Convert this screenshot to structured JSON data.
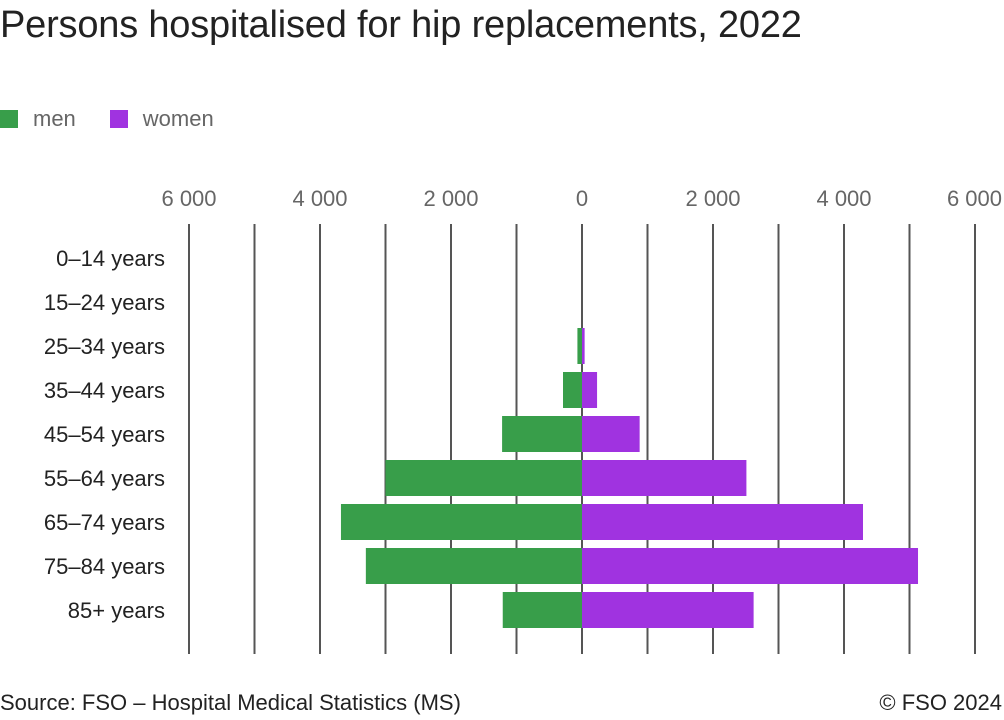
{
  "chart_data": {
    "type": "bar",
    "orientation": "horizontal-pyramid",
    "title": "Persons hospitalised for hip replacements, 2022",
    "categories": [
      "0–14 years",
      "15–24 years",
      "25–34 years",
      "35–44 years",
      "45–54 years",
      "55–64 years",
      "65–74 years",
      "75–84 years",
      "85+ years"
    ],
    "series": [
      {
        "name": "men",
        "color": "#389e4a",
        "values": [
          0,
          0,
          70,
          290,
          1220,
          3000,
          3680,
          3300,
          1210
        ]
      },
      {
        "name": "women",
        "color": "#a033e0",
        "values": [
          0,
          0,
          40,
          230,
          880,
          2510,
          4290,
          5130,
          2620
        ]
      }
    ],
    "xlim": [
      -6000,
      6000
    ],
    "ticks": [
      -6000,
      -4000,
      -2000,
      0,
      2000,
      4000,
      6000
    ],
    "tick_labels": [
      "6 000",
      "4 000",
      "2 000",
      "0",
      "2 000",
      "4 000",
      "6 000"
    ],
    "legend_position": "top-left",
    "grid": true
  },
  "footer": {
    "source": "Source: FSO – Hospital Medical Statistics (MS)",
    "copyright": "© FSO 2024"
  }
}
